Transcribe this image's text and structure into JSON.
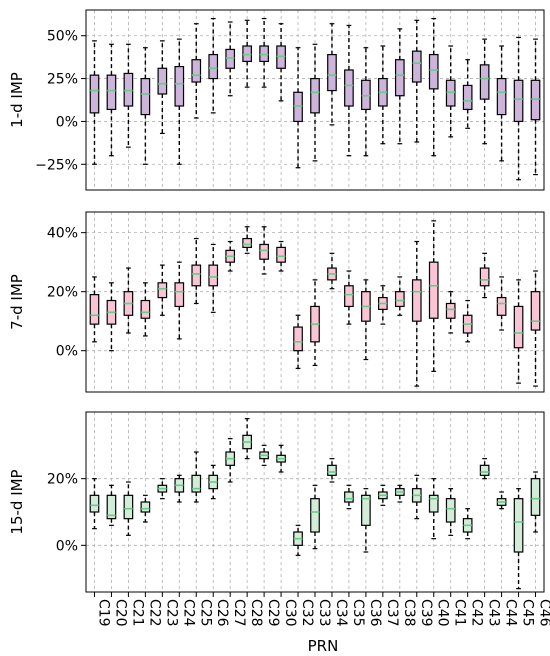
{
  "chart_data": {
    "type": "box",
    "xlabel": "PRN",
    "categories": [
      "C19",
      "C20",
      "C21",
      "C22",
      "C23",
      "C24",
      "C25",
      "C26",
      "C27",
      "C28",
      "C29",
      "C30",
      "C32",
      "C33",
      "C34",
      "C35",
      "C36",
      "C37",
      "C38",
      "C39",
      "C40",
      "C41",
      "C42",
      "C43",
      "C44",
      "C45",
      "C46"
    ],
    "grid": true,
    "panels": [
      {
        "ylabel": "1-d IMP",
        "ylim": [
          -40,
          65
        ],
        "yticks": [
          -25,
          0,
          25,
          50
        ],
        "ytick_labels": [
          "−25%",
          "0%",
          "25%",
          "50%"
        ],
        "box_color": "#cdb4db",
        "median_color": "#66cc88",
        "boxes": [
          {
            "whislo": -25,
            "q1": 5,
            "med": 18,
            "q3": 27,
            "whishi": 47
          },
          {
            "whislo": -20,
            "q1": 7,
            "med": 18,
            "q3": 27,
            "whishi": 45
          },
          {
            "whislo": -15,
            "q1": 9,
            "med": 18,
            "q3": 28,
            "whishi": 45
          },
          {
            "whislo": -25,
            "q1": 4,
            "med": 16,
            "q3": 25,
            "whishi": 43
          },
          {
            "whislo": -7,
            "q1": 16,
            "med": 22,
            "q3": 31,
            "whishi": 47
          },
          {
            "whislo": -25,
            "q1": 9,
            "med": 22,
            "q3": 32,
            "whishi": 48
          },
          {
            "whislo": 2,
            "q1": 23,
            "med": 27,
            "q3": 36,
            "whishi": 57
          },
          {
            "whislo": 5,
            "q1": 25,
            "med": 31,
            "q3": 39,
            "whishi": 60
          },
          {
            "whislo": 15,
            "q1": 31,
            "med": 37,
            "q3": 42,
            "whishi": 58
          },
          {
            "whislo": 20,
            "q1": 35,
            "med": 39,
            "q3": 44,
            "whishi": 59
          },
          {
            "whislo": 20,
            "q1": 35,
            "med": 39,
            "q3": 44,
            "whishi": 60
          },
          {
            "whislo": 12,
            "q1": 31,
            "med": 38,
            "q3": 44,
            "whishi": 57
          },
          {
            "whislo": -27,
            "q1": 0,
            "med": 9,
            "q3": 17,
            "whishi": 43
          },
          {
            "whislo": -23,
            "q1": 5,
            "med": 17,
            "q3": 25,
            "whishi": 45
          },
          {
            "whislo": -2,
            "q1": 18,
            "med": 27,
            "q3": 39,
            "whishi": 57
          },
          {
            "whislo": -20,
            "q1": 9,
            "med": 21,
            "q3": 30,
            "whishi": 56
          },
          {
            "whislo": -20,
            "q1": 7,
            "med": 15,
            "q3": 24,
            "whishi": 43
          },
          {
            "whislo": -13,
            "q1": 9,
            "med": 17,
            "q3": 25,
            "whishi": 44
          },
          {
            "whislo": -13,
            "q1": 15,
            "med": 27,
            "q3": 36,
            "whishi": 54
          },
          {
            "whislo": -12,
            "q1": 23,
            "med": 34,
            "q3": 41,
            "whishi": 59
          },
          {
            "whislo": -20,
            "q1": 19,
            "med": 30,
            "q3": 39,
            "whishi": 60
          },
          {
            "whislo": -9,
            "q1": 9,
            "med": 17,
            "q3": 24,
            "whishi": 44
          },
          {
            "whislo": -4,
            "q1": 7,
            "med": 12,
            "q3": 21,
            "whishi": 36
          },
          {
            "whislo": -13,
            "q1": 13,
            "med": 25,
            "q3": 33,
            "whishi": 48
          },
          {
            "whislo": -23,
            "q1": 4,
            "med": 17,
            "q3": 25,
            "whishi": 44
          },
          {
            "whislo": -34,
            "q1": 0,
            "med": 13,
            "q3": 24,
            "whishi": 49
          },
          {
            "whislo": -31,
            "q1": 1,
            "med": 13,
            "q3": 24,
            "whishi": 48
          }
        ]
      },
      {
        "ylabel": "7-d IMP",
        "ylim": [
          -14,
          47
        ],
        "yticks": [
          0,
          20,
          40
        ],
        "ytick_labels": [
          "0%",
          "20%",
          "40%"
        ],
        "box_color": "#f9c5d5",
        "median_color": "#66cc88",
        "boxes": [
          {
            "whislo": 3,
            "q1": 9,
            "med": 12,
            "q3": 19,
            "whishi": 25
          },
          {
            "whislo": 0,
            "q1": 9,
            "med": 13,
            "q3": 17,
            "whishi": 23
          },
          {
            "whislo": 6,
            "q1": 12,
            "med": 16,
            "q3": 20,
            "whishi": 28
          },
          {
            "whislo": 5,
            "q1": 11,
            "med": 13,
            "q3": 17,
            "whishi": 23
          },
          {
            "whislo": 12,
            "q1": 18,
            "med": 21,
            "q3": 23,
            "whishi": 29
          },
          {
            "whislo": 4,
            "q1": 15,
            "med": 20,
            "q3": 23,
            "whishi": 30
          },
          {
            "whislo": 16,
            "q1": 22,
            "med": 26,
            "q3": 29,
            "whishi": 38
          },
          {
            "whislo": 13,
            "q1": 22,
            "med": 25,
            "q3": 29,
            "whishi": 36
          },
          {
            "whislo": 27,
            "q1": 30,
            "med": 32,
            "q3": 34,
            "whishi": 37
          },
          {
            "whislo": 33,
            "q1": 35,
            "med": 36,
            "q3": 38,
            "whishi": 42
          },
          {
            "whislo": 26,
            "q1": 31,
            "med": 34,
            "q3": 36,
            "whishi": 42
          },
          {
            "whislo": 27,
            "q1": 30,
            "med": 32,
            "q3": 35,
            "whishi": 37
          },
          {
            "whislo": -6,
            "q1": 0,
            "med": 3,
            "q3": 8,
            "whishi": 12
          },
          {
            "whislo": -5,
            "q1": 3,
            "med": 9,
            "q3": 15,
            "whishi": 24
          },
          {
            "whislo": 21,
            "q1": 24,
            "med": 26,
            "q3": 28,
            "whishi": 33
          },
          {
            "whislo": 9,
            "q1": 15,
            "med": 19,
            "q3": 22,
            "whishi": 27
          },
          {
            "whislo": -3,
            "q1": 10,
            "med": 15,
            "q3": 20,
            "whishi": 24
          },
          {
            "whislo": 9,
            "q1": 14,
            "med": 16,
            "q3": 18,
            "whishi": 22
          },
          {
            "whislo": 12,
            "q1": 15,
            "med": 17,
            "q3": 20,
            "whishi": 25
          },
          {
            "whislo": -12,
            "q1": 10,
            "med": 20,
            "q3": 24,
            "whishi": 37
          },
          {
            "whislo": -7,
            "q1": 11,
            "med": 22,
            "q3": 30,
            "whishi": 44
          },
          {
            "whislo": 6,
            "q1": 11,
            "med": 14,
            "q3": 16,
            "whishi": 20
          },
          {
            "whislo": 3,
            "q1": 6,
            "med": 9,
            "q3": 12,
            "whishi": 17
          },
          {
            "whislo": 18,
            "q1": 22,
            "med": 24,
            "q3": 28,
            "whishi": 33
          },
          {
            "whislo": 7,
            "q1": 12,
            "med": 16,
            "q3": 18,
            "whishi": 25
          },
          {
            "whislo": -11,
            "q1": 1,
            "med": 6,
            "q3": 15,
            "whishi": 24
          },
          {
            "whislo": -12,
            "q1": 7,
            "med": 10,
            "q3": 20,
            "whishi": 27
          }
        ]
      },
      {
        "ylabel": "15-d IMP",
        "ylim": [
          -14,
          40
        ],
        "yticks": [
          0,
          20
        ],
        "ytick_labels": [
          "0%",
          "20%"
        ],
        "box_color": "#d3ecd8",
        "median_color": "#66cc88",
        "boxes": [
          {
            "whislo": 5,
            "q1": 10,
            "med": 12,
            "q3": 15,
            "whishi": 20
          },
          {
            "whislo": 6,
            "q1": 8,
            "med": 9,
            "q3": 15,
            "whishi": 18
          },
          {
            "whislo": 3,
            "q1": 8,
            "med": 11,
            "q3": 15,
            "whishi": 19
          },
          {
            "whislo": 7,
            "q1": 10,
            "med": 11,
            "q3": 13,
            "whishi": 15
          },
          {
            "whislo": 14,
            "q1": 16,
            "med": 17,
            "q3": 18,
            "whishi": 20
          },
          {
            "whislo": 13,
            "q1": 16,
            "med": 18,
            "q3": 20,
            "whishi": 21
          },
          {
            "whislo": 13,
            "q1": 16,
            "med": 17,
            "q3": 21,
            "whishi": 28
          },
          {
            "whislo": 14,
            "q1": 17,
            "med": 19,
            "q3": 21,
            "whishi": 24
          },
          {
            "whislo": 19,
            "q1": 24,
            "med": 26,
            "q3": 28,
            "whishi": 32
          },
          {
            "whislo": 26,
            "q1": 29,
            "med": 31,
            "q3": 33,
            "whishi": 38
          },
          {
            "whislo": 24,
            "q1": 26,
            "med": 27,
            "q3": 28,
            "whishi": 30
          },
          {
            "whislo": 22,
            "q1": 25,
            "med": 26,
            "q3": 27,
            "whishi": 30
          },
          {
            "whislo": -3,
            "q1": 0,
            "med": 2,
            "q3": 4,
            "whishi": 6
          },
          {
            "whislo": -1,
            "q1": 4,
            "med": 10,
            "q3": 14,
            "whishi": 18
          },
          {
            "whislo": 19,
            "q1": 21,
            "med": 22,
            "q3": 24,
            "whishi": 26
          },
          {
            "whislo": 11,
            "q1": 13,
            "med": 14,
            "q3": 16,
            "whishi": 18
          },
          {
            "whislo": -2,
            "q1": 6,
            "med": 14,
            "q3": 15,
            "whishi": 17
          },
          {
            "whislo": 12,
            "q1": 14,
            "med": 15,
            "q3": 16,
            "whishi": 18
          },
          {
            "whislo": 13,
            "q1": 15,
            "med": 16,
            "q3": 17,
            "whishi": 18
          },
          {
            "whislo": 8,
            "q1": 13,
            "med": 15,
            "q3": 17,
            "whishi": 21
          },
          {
            "whislo": 2,
            "q1": 10,
            "med": 14,
            "q3": 15,
            "whishi": 20
          },
          {
            "whislo": 3,
            "q1": 7,
            "med": 11,
            "q3": 14,
            "whishi": 17
          },
          {
            "whislo": 2,
            "q1": 4,
            "med": 6,
            "q3": 8,
            "whishi": 11
          },
          {
            "whislo": 20,
            "q1": 21,
            "med": 22,
            "q3": 24,
            "whishi": 26
          },
          {
            "whislo": 11,
            "q1": 12,
            "med": 13,
            "q3": 14,
            "whishi": 16
          },
          {
            "whislo": -13,
            "q1": -2,
            "med": 7,
            "q3": 14,
            "whishi": 17
          },
          {
            "whislo": 4,
            "q1": 9,
            "med": 14,
            "q3": 20,
            "whishi": 22
          }
        ]
      }
    ]
  }
}
